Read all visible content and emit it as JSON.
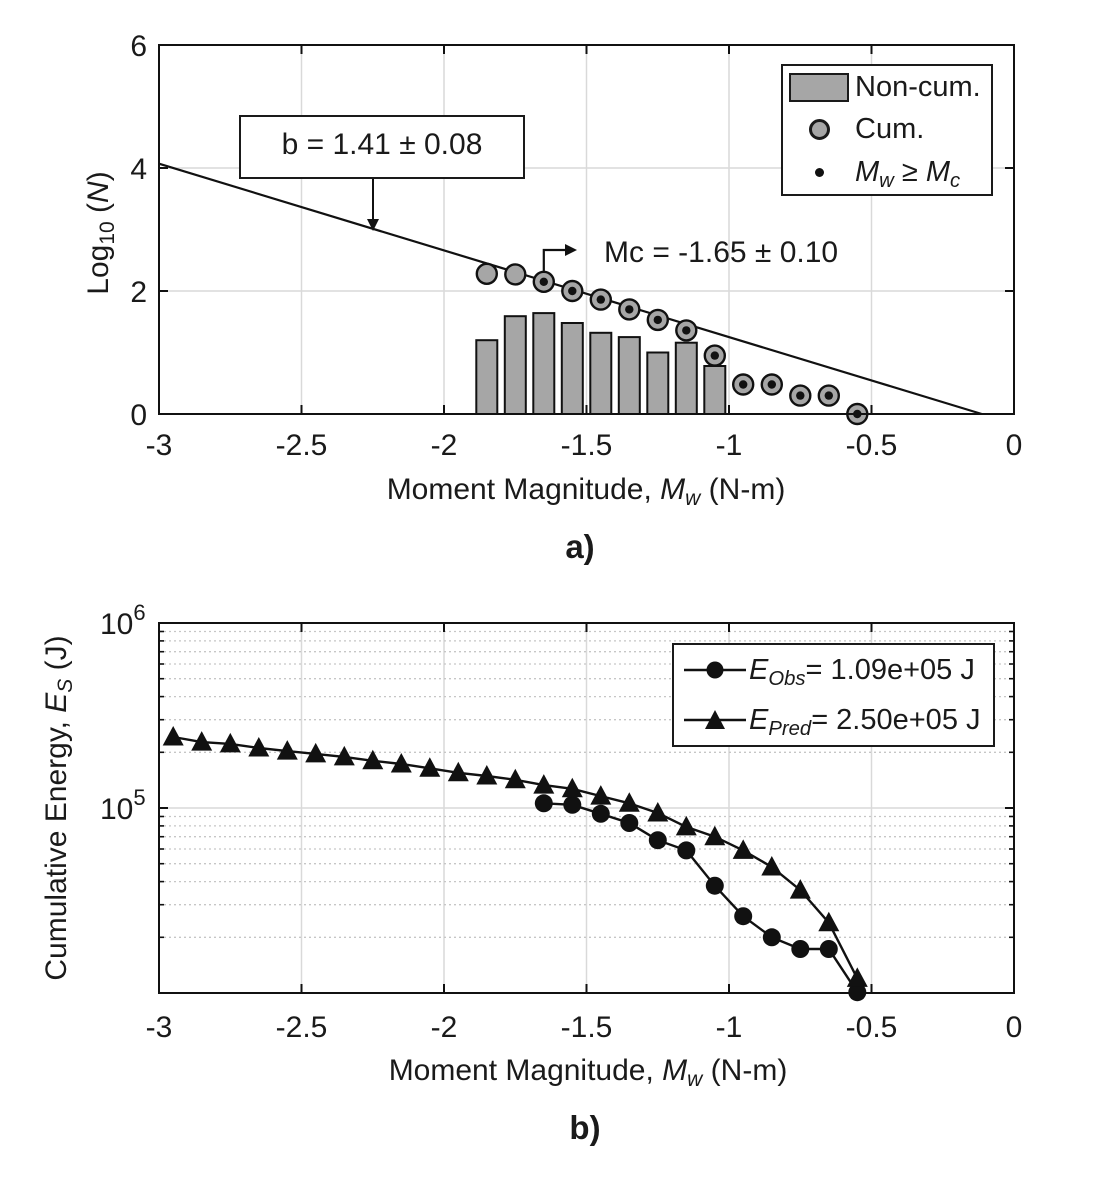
{
  "figure": {
    "bg": "#ffffff",
    "ink_color": "#111111",
    "grid_color": "#d9d9d9",
    "minor_grid_color": "#c6c6c6",
    "marker_gray": "#a6a6a6"
  },
  "panel_a": {
    "label": "a)",
    "annotation_b": "b = 1.41 ± 0.08",
    "annotation_mc": "Mc = -1.65 ± 0.10",
    "xlabel": {
      "pre": "Moment Magnitude, ",
      "sym": "M",
      "sub": "w",
      "post": " (N-m)"
    },
    "ylabel": {
      "pre": "Log",
      "sub": "10",
      "mid": " (",
      "sym": "N",
      "post": ")"
    },
    "legend": {
      "item1": "Non-cum.",
      "item2": "Cum.",
      "item3": {
        "m1": "M",
        "s1": "w",
        "rel": " ≥ ",
        "m2": "M",
        "s2": "c"
      }
    }
  },
  "panel_b": {
    "label": "b)",
    "xlabel": {
      "pre": "Moment Magnitude, ",
      "sym": "M",
      "sub": "w",
      "post": " (N-m)"
    },
    "ylabel": {
      "pre": "Cumulative Energy, ",
      "sym": "E",
      "sub": "S",
      "post": " (J)"
    },
    "legend": {
      "row1": {
        "sym": "E",
        "sub": "Obs",
        "val": "= 1.09e+05 J"
      },
      "row2": {
        "sym": "E",
        "sub": "Pred",
        "val": "= 2.50e+05 J"
      }
    }
  },
  "chart_data": [
    {
      "id": "panel-a",
      "type": "bar",
      "title": "",
      "xlabel": "Moment Magnitude, Mw (N-m)",
      "ylabel": "Log10 (N)",
      "xlim": [
        -3,
        0
      ],
      "ylim": [
        0,
        6
      ],
      "x_ticks": [
        -3,
        -2.5,
        -2,
        -1.5,
        -1,
        -0.5,
        0
      ],
      "x_tick_labels": [
        "-3",
        "-2.5",
        "-2",
        "-1.5",
        "-1",
        "-0.5",
        "0"
      ],
      "y_ticks": [
        0,
        2,
        4,
        6
      ],
      "y_tick_labels": [
        "0",
        "2",
        "4",
        "6"
      ],
      "grid": true,
      "bar_width_mag": 0.075,
      "bars": {
        "label": "Non-cum.",
        "x": [
          -1.85,
          -1.75,
          -1.65,
          -1.55,
          -1.45,
          -1.35,
          -1.25,
          -1.15,
          -1.05
        ],
        "log10_n": [
          1.2,
          1.59,
          1.64,
          1.48,
          1.32,
          1.25,
          1.0,
          1.16,
          0.78
        ]
      },
      "cumulative": {
        "label": "Cum.",
        "x": [
          -1.85,
          -1.75,
          -1.65,
          -1.55,
          -1.45,
          -1.35,
          -1.25,
          -1.15,
          -1.05,
          -0.95,
          -0.85,
          -0.75,
          -0.65,
          -0.55
        ],
        "log10_n": [
          2.28,
          2.27,
          2.15,
          2.0,
          1.86,
          1.7,
          1.53,
          1.36,
          0.95,
          0.48,
          0.48,
          0.3,
          0.3,
          0.0
        ]
      },
      "mc_dots": {
        "label": "Mw ≥ Mc",
        "x": [
          -1.65,
          -1.55,
          -1.45,
          -1.35,
          -1.25,
          -1.15,
          -1.05,
          -0.95,
          -0.85,
          -0.75,
          -0.65,
          -0.55
        ],
        "log10_n": [
          2.15,
          2.0,
          1.86,
          1.7,
          1.53,
          1.36,
          0.95,
          0.48,
          0.48,
          0.3,
          0.3,
          0.0
        ]
      },
      "fit_line": {
        "x": [
          -3,
          -0.113
        ],
        "y": [
          4.07,
          0
        ],
        "b": 1.41,
        "b_err": 0.08
      },
      "mc": {
        "value": -1.65,
        "err": 0.1
      }
    },
    {
      "id": "panel-b",
      "type": "line",
      "xlabel": "Moment Magnitude, Mw (N-m)",
      "ylabel": "Cumulative Energy, Es (J)",
      "xlim": [
        -3,
        0
      ],
      "x_ticks": [
        -3,
        -2.5,
        -2,
        -1.5,
        -1,
        -0.5,
        0
      ],
      "x_tick_labels": [
        "-3",
        "-2.5",
        "-2",
        "-1.5",
        "-1",
        "-0.5",
        "0"
      ],
      "yscale": "log",
      "ylim": [
        10000,
        1000000
      ],
      "y_tick_labels": [
        {
          "base": "10",
          "exp": "5",
          "value": 100000
        },
        {
          "base": "10",
          "exp": "6",
          "value": 1000000
        }
      ],
      "grid": true,
      "series": [
        {
          "name": "E_Obs",
          "legend_value": "= 1.09e+05 J",
          "marker": "circle",
          "total_J": 109000,
          "x": [
            -1.65,
            -1.55,
            -1.45,
            -1.35,
            -1.25,
            -1.15,
            -1.05,
            -0.95,
            -0.85,
            -0.75,
            -0.65,
            -0.55
          ],
          "E_J": [
            106000,
            104000,
            93000,
            83000,
            67000,
            59000,
            38000,
            26000,
            20000,
            17300,
            17300,
            10100
          ]
        },
        {
          "name": "E_Pred",
          "legend_value": "= 2.50e+05 J",
          "marker": "triangle",
          "total_J": 250000,
          "x": [
            -2.95,
            -2.85,
            -2.75,
            -2.65,
            -2.55,
            -2.45,
            -2.35,
            -2.25,
            -2.15,
            -2.05,
            -1.95,
            -1.85,
            -1.75,
            -1.65,
            -1.55,
            -1.45,
            -1.35,
            -1.25,
            -1.15,
            -1.05,
            -0.95,
            -0.85,
            -0.75,
            -0.65,
            -0.55
          ],
          "E_J": [
            242000,
            227000,
            222000,
            211000,
            203000,
            196000,
            189000,
            180000,
            173000,
            164000,
            155000,
            149000,
            142000,
            133000,
            127000,
            116000,
            106000,
            94000,
            79000,
            70000,
            59000,
            48000,
            36000,
            24000,
            12000
          ]
        }
      ]
    }
  ]
}
